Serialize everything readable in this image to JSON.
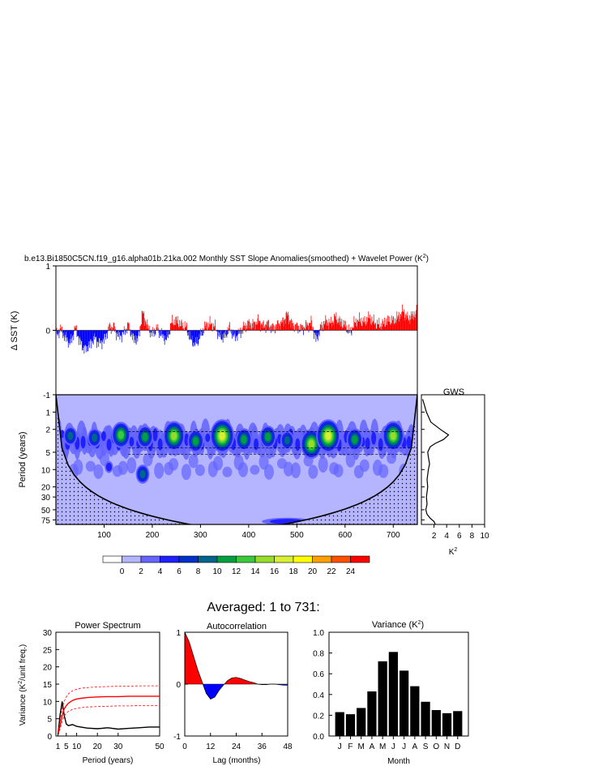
{
  "title": "b.e13.Bi1850C5CN.f19_g16.alpha01b.21ka.002 Monthly SST Slope Anomalies(smoothed) + Wavelet Power (K",
  "title_sup": "2",
  "title_end": ")",
  "subtitle": "Averaged: 1 to 731:",
  "colors": {
    "positive": "#ff0000",
    "negative": "#0000ff"
  },
  "chart_data": [
    {
      "type": "area",
      "name": "sst_anomaly",
      "ylabel": "Δ SST (K)",
      "ylim": [
        -1,
        1
      ],
      "y_ticks": [
        "1",
        "0",
        "-1"
      ],
      "xlim": [
        0,
        750
      ],
      "x": [
        0,
        10,
        20,
        30,
        40,
        50,
        60,
        70,
        80,
        90,
        100,
        110,
        120,
        130,
        140,
        150,
        160,
        170,
        180,
        190,
        200,
        210,
        220,
        230,
        240,
        250,
        260,
        270,
        280,
        290,
        300,
        310,
        320,
        330,
        340,
        350,
        360,
        370,
        380,
        390,
        400,
        410,
        420,
        430,
        440,
        450,
        460,
        470,
        480,
        490,
        500,
        510,
        520,
        530,
        540,
        550,
        560,
        570,
        580,
        590,
        600,
        610,
        620,
        630,
        640,
        650,
        660,
        670,
        680,
        690,
        700,
        710,
        720,
        730,
        740,
        750
      ],
      "y": [
        -0.08,
        0.02,
        -0.12,
        -0.2,
        0.05,
        -0.18,
        -0.3,
        -0.22,
        -0.12,
        -0.2,
        -0.15,
        0.04,
        0.05,
        -0.1,
        -0.05,
        0.08,
        -0.12,
        -0.15,
        0.28,
        0.05,
        -0.06,
        0.03,
        -0.08,
        -0.15,
        0.12,
        0.15,
        0.08,
        0.05,
        -0.15,
        -0.22,
        -0.08,
        0.06,
        0.1,
        0.05,
        -0.1,
        -0.1,
        0.04,
        -0.1,
        -0.06,
        0.05,
        0.1,
        0.08,
        0.15,
        0.06,
        0.1,
        0.03,
        0.08,
        0.12,
        0.25,
        0.08,
        0.05,
        0.03,
        0.07,
        0.12,
        -0.15,
        0.05,
        0.14,
        0.1,
        0.2,
        0.12,
        0.08,
        -0.04,
        0.12,
        0.16,
        0.12,
        0.2,
        0.12,
        0.08,
        0.1,
        0.16,
        0.14,
        0.2,
        0.3,
        0.18,
        0.22,
        0.3
      ]
    },
    {
      "type": "heatmap",
      "name": "wavelet_power",
      "ylabel": "Period (years)",
      "y_ticks": [
        "1",
        "2",
        "5",
        "10",
        "20",
        "30",
        "50",
        "75"
      ],
      "y_tick_values": [
        1,
        2,
        5,
        10,
        20,
        30,
        50,
        75
      ],
      "ylim": [
        0.5,
        90
      ],
      "xlim": [
        0,
        750
      ],
      "x_ticks": [
        "100",
        "200",
        "300",
        "400",
        "500",
        "600",
        "700"
      ],
      "x_tick_values": [
        100,
        200,
        300,
        400,
        500,
        600,
        700
      ],
      "colorbar_labels": [
        "0",
        "2",
        "4",
        "6",
        "8",
        "10",
        "12",
        "14",
        "16",
        "18",
        "20",
        "22",
        "24"
      ],
      "colorbar_colors": [
        "#ffffff",
        "#b4b4ff",
        "#6464ff",
        "#2020ff",
        "#0030c8",
        "#00648c",
        "#00a040",
        "#3cc83c",
        "#96dc28",
        "#d7f032",
        "#ffff00",
        "#ffa000",
        "#ff5000",
        "#ff0000"
      ],
      "hotspots": [
        {
          "x": 180,
          "period": 12,
          "level": 5
        },
        {
          "x": 110,
          "period": 9,
          "level": 3
        },
        {
          "x": 480,
          "period": 80,
          "level": 3
        },
        {
          "x": 570,
          "period": 80,
          "level": 2
        },
        {
          "x": 30,
          "period": 2.6,
          "level": 5
        },
        {
          "x": 80,
          "period": 2.8,
          "level": 5
        },
        {
          "x": 135,
          "period": 2.5,
          "level": 7
        },
        {
          "x": 185,
          "period": 2.7,
          "level": 6
        },
        {
          "x": 245,
          "period": 2.6,
          "level": 8
        },
        {
          "x": 290,
          "period": 3.2,
          "level": 6
        },
        {
          "x": 345,
          "period": 2.6,
          "level": 9
        },
        {
          "x": 390,
          "period": 3.0,
          "level": 6
        },
        {
          "x": 440,
          "period": 2.7,
          "level": 6
        },
        {
          "x": 480,
          "period": 3.1,
          "level": 5
        },
        {
          "x": 530,
          "period": 3.6,
          "level": 8
        },
        {
          "x": 565,
          "period": 2.6,
          "level": 9
        },
        {
          "x": 620,
          "period": 3.0,
          "level": 6
        },
        {
          "x": 700,
          "period": 2.6,
          "level": 8
        }
      ]
    },
    {
      "type": "line",
      "name": "global_wavelet_spectrum",
      "title": "GWS",
      "xlabel": "K",
      "xlabel_sup": "2",
      "xlim": [
        0,
        10
      ],
      "x_ticks": [
        "2",
        "4",
        "6",
        "8",
        "10"
      ],
      "x_tick_values": [
        2,
        4,
        6,
        8,
        10
      ],
      "period": [
        0.6,
        1,
        1.5,
        2,
        2.5,
        3,
        3.5,
        4,
        5,
        6,
        8,
        10,
        15,
        20,
        30,
        40,
        50,
        60,
        70,
        80,
        90
      ],
      "power": [
        0.2,
        0.8,
        1.5,
        3.0,
        4.3,
        3.5,
        2.2,
        1.4,
        1.0,
        1.1,
        1.3,
        1.1,
        0.9,
        1.0,
        0.8,
        0.9,
        0.7,
        0.9,
        1.4,
        2.0,
        2.2
      ]
    },
    {
      "type": "line",
      "name": "power_spectrum",
      "title": "Power Spectrum",
      "xlabel": "Period (years)",
      "ylabel": "Variance (K",
      "ylabel_sup": "2",
      "ylabel_end": "/unit freq.)",
      "xlim": [
        0,
        50
      ],
      "ylim": [
        0,
        30
      ],
      "x_ticks": [
        "1",
        "5",
        "10",
        "20",
        "30",
        "50"
      ],
      "x_tick_values": [
        1,
        5,
        10,
        20,
        30,
        50
      ],
      "y_ticks": [
        "0",
        "5",
        "10",
        "15",
        "20",
        "25",
        "30"
      ],
      "y_tick_values": [
        0,
        5,
        10,
        15,
        20,
        25,
        30
      ],
      "x": [
        1,
        2,
        3,
        4,
        5,
        6,
        8,
        10,
        12,
        15,
        20,
        25,
        30,
        35,
        40,
        45,
        50
      ],
      "series": [
        {
          "values": [
            0.5,
            6,
            10,
            6,
            3.5,
            3.0,
            3.3,
            2.8,
            2.6,
            2.3,
            2.1,
            2.4,
            2.0,
            2.2,
            2.4,
            2.6,
            2.6
          ],
          "color": "#000000",
          "dash": false
        },
        {
          "values": [
            0.5,
            3,
            6,
            7.8,
            8.8,
            9.5,
            10.3,
            10.7,
            10.9,
            11.1,
            11.3,
            11.4,
            11.4,
            11.5,
            11.5,
            11.5,
            11.5
          ],
          "color": "#ff0000",
          "dash": false
        },
        {
          "values": [
            0.8,
            4.5,
            8,
            10,
            11.3,
            12.2,
            13.1,
            13.5,
            13.8,
            14.0,
            14.2,
            14.3,
            14.4,
            14.4,
            14.5,
            14.5,
            14.5
          ],
          "color": "#ff0000",
          "dash": true
        },
        {
          "values": [
            0.3,
            2,
            4.3,
            5.8,
            6.6,
            7.1,
            7.7,
            8.0,
            8.2,
            8.4,
            8.5,
            8.6,
            8.7,
            8.7,
            8.8,
            8.8,
            8.8
          ],
          "color": "#ff0000",
          "dash": true
        }
      ]
    },
    {
      "type": "area",
      "name": "autocorrelation",
      "title": "Autocorrelation",
      "xlabel": "Lag (months)",
      "xlim": [
        0,
        48
      ],
      "ylim": [
        -1,
        1
      ],
      "x_ticks": [
        "0",
        "12",
        "24",
        "36",
        "48"
      ],
      "x_tick_values": [
        0,
        12,
        24,
        36,
        48
      ],
      "y_ticks": [
        "1",
        "0",
        "-1"
      ],
      "y_tick_values": [
        1,
        0,
        -1
      ],
      "x": [
        0,
        2,
        4,
        6,
        8,
        10,
        12,
        14,
        16,
        18,
        20,
        22,
        24,
        26,
        28,
        30,
        32,
        34,
        36,
        38,
        40,
        42,
        44,
        46,
        48
      ],
      "y": [
        1.0,
        0.82,
        0.55,
        0.28,
        0.05,
        -0.18,
        -0.29,
        -0.25,
        -0.12,
        -0.02,
        0.07,
        0.12,
        0.13,
        0.11,
        0.08,
        0.05,
        0.03,
        0.0,
        -0.01,
        -0.01,
        0.0,
        0.0,
        -0.01,
        -0.02,
        -0.02
      ]
    },
    {
      "type": "bar",
      "name": "monthly_variance",
      "title": "Variance (K",
      "title_sup": "2",
      "title_end": ")",
      "xlabel": "Month",
      "categories": [
        "J",
        "F",
        "M",
        "A",
        "M",
        "J",
        "J",
        "A",
        "S",
        "O",
        "N",
        "D"
      ],
      "values": [
        0.23,
        0.21,
        0.27,
        0.43,
        0.72,
        0.81,
        0.63,
        0.48,
        0.33,
        0.25,
        0.22,
        0.24
      ],
      "ylim": [
        0,
        1.0
      ],
      "y_ticks": [
        "0.0",
        "0.2",
        "0.4",
        "0.6",
        "0.8",
        "1.0"
      ],
      "y_tick_values": [
        0,
        0.2,
        0.4,
        0.6,
        0.8,
        1.0
      ]
    }
  ]
}
